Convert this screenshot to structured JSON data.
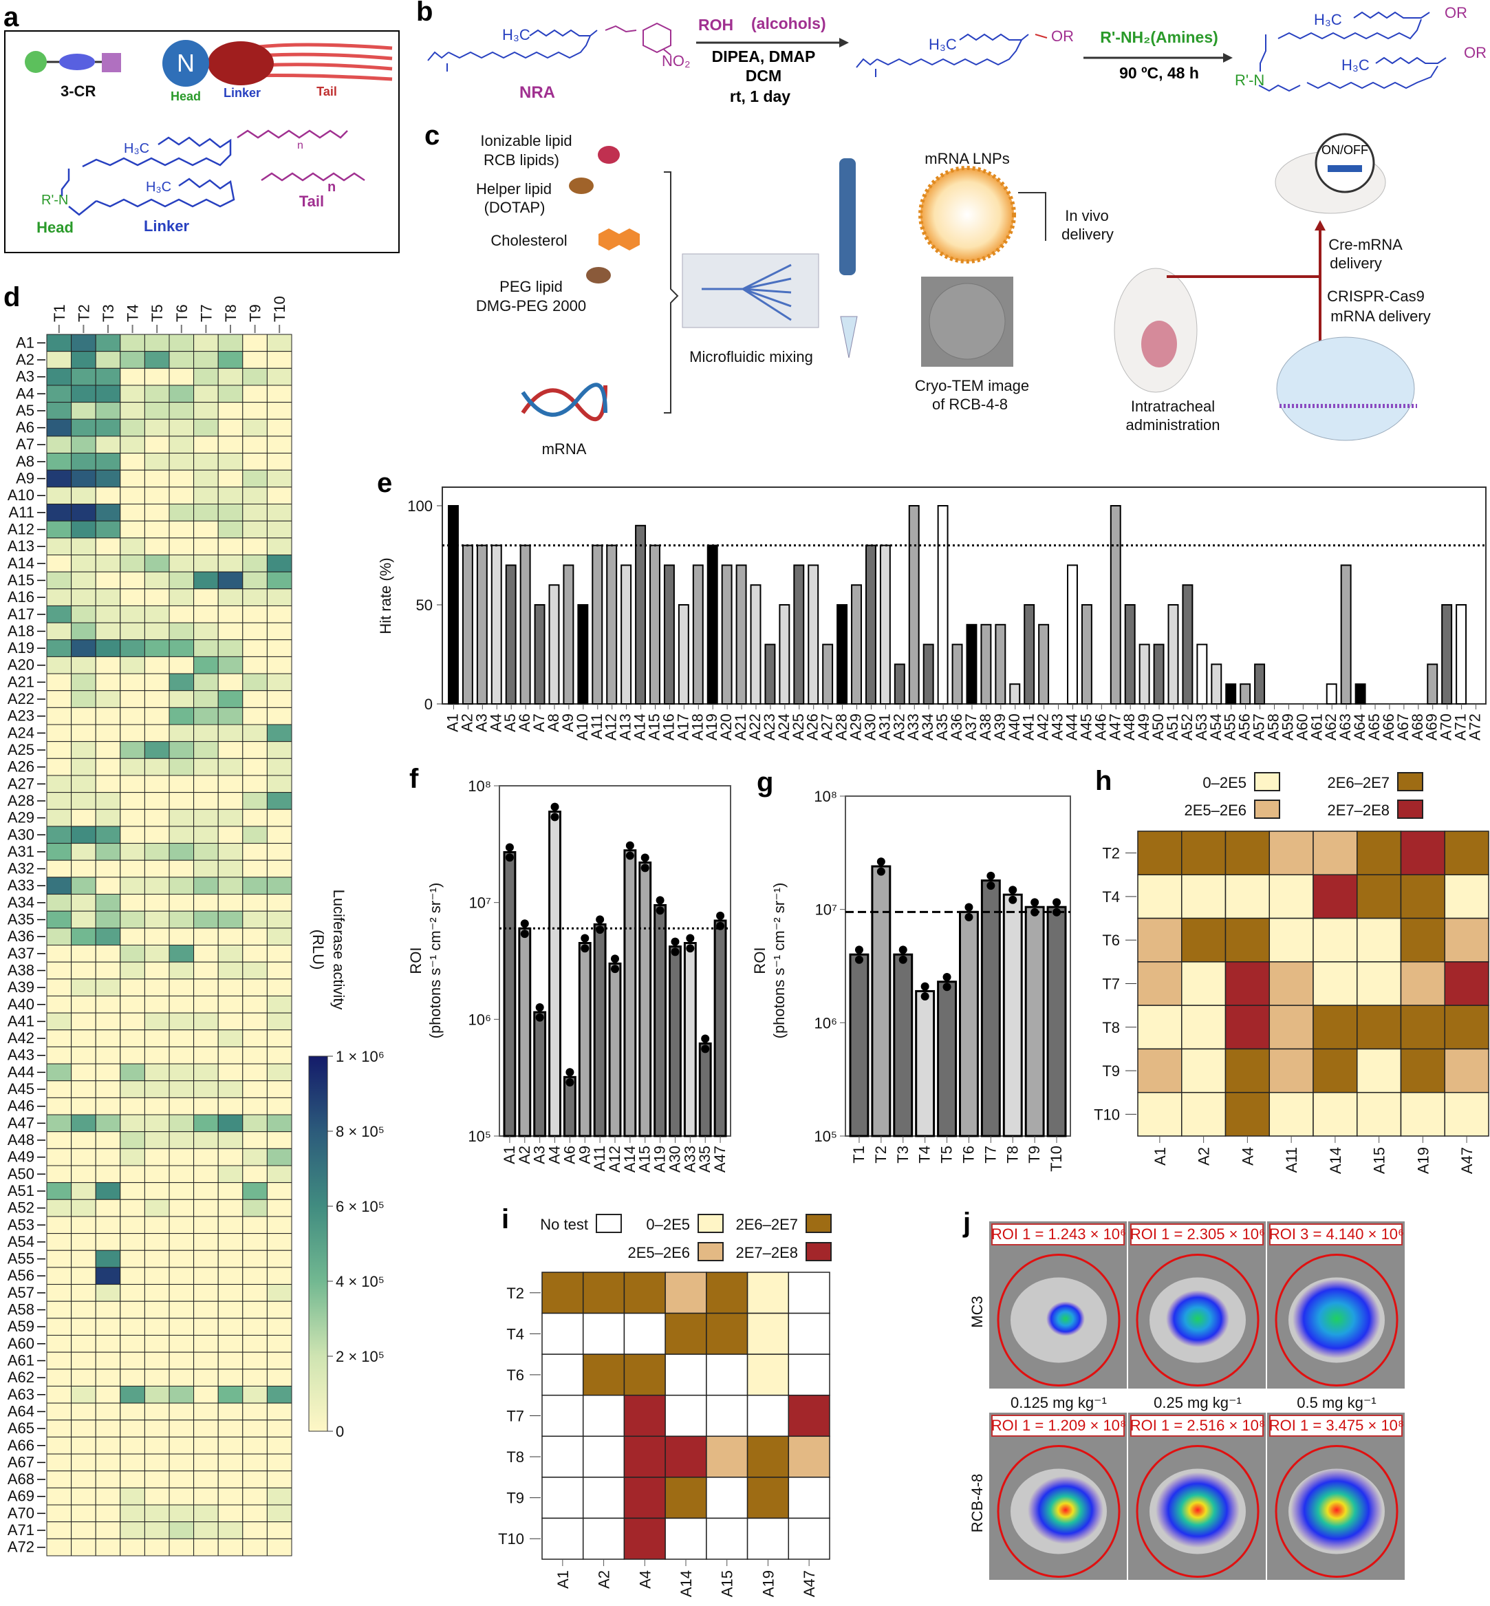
{
  "panel_labels": {
    "a": "a",
    "b": "b",
    "c": "c",
    "d": "d",
    "e": "e",
    "f": "f",
    "g": "g",
    "h": "h",
    "i": "i",
    "j": "j"
  },
  "panel_a": {
    "three_cr": "3-CR",
    "n": "N",
    "head": "Head",
    "linker": "Linker",
    "tail": "Tail",
    "h3c_1": "H₃C",
    "h3c_2": "H₃C",
    "r_n": "R'-N",
    "n_1": "n",
    "n_2": "n",
    "struct_head": "Head",
    "struct_linker": "Linker",
    "struct_tail": "Tail"
  },
  "panel_b": {
    "h3c_1": "H₃C",
    "no2": "NO₂",
    "nra": "NRA",
    "reagent_1": "ROH",
    "reagent_1_note": "(alcohols)",
    "cond_1a": "DIPEA, DMAP",
    "cond_1b": "DCM",
    "cond_1c": "rt, 1 day",
    "h3c_2": "H₃C",
    "or_1": "OR",
    "reagent_2": "R'-NH₂(Amines)",
    "cond_2": "90 ºC, 48 h",
    "h3c_3": "H₃C",
    "or_2": "OR",
    "r_n": "R'-N",
    "h3c_4": "H₃C",
    "or_3": "OR"
  },
  "panel_c": {
    "ionizable_1": "Ionizable lipid",
    "ionizable_2": "RCB lipids)",
    "helper_1": "Helper lipid",
    "helper_2": "(DOTAP)",
    "cholesterol": "Cholesterol",
    "peg_1": "PEG lipid",
    "peg_2": "DMG-PEG 2000",
    "mrna": "mRNA",
    "microfluidic": "Microfluidic mixing",
    "lnps": "mRNA LNPs",
    "cryo_1": "Cryo-TEM image",
    "cryo_2": "of RCB-4-8",
    "invivo_1": "In vivo",
    "invivo_2": "delivery",
    "it_1": "Intratracheal",
    "it_2": "administration",
    "onoff": "ON/OFF",
    "cre_1": "Cre-mRNA",
    "cre_2": "delivery",
    "crispr_1": "CRISPR-Cas9",
    "crispr_2": "mRNA delivery"
  },
  "panel_j": {
    "rows": [
      "MC3",
      "RCB-4-8"
    ],
    "doses": [
      "0.125 mg kg⁻¹",
      "0.25 mg kg⁻¹",
      "0.5 mg kg⁻¹"
    ],
    "roi": [
      [
        "ROI 1 = 1.243 × 10⁶",
        "ROI 1 = 2.305 × 10⁶",
        "ROI 3 = 4.140 × 10⁶"
      ],
      [
        "ROI 1 = 1.209 × 10⁸",
        "ROI 1 = 2.516 × 10⁸",
        "ROI 1 = 3.475 × 10⁸"
      ]
    ]
  },
  "colors": {
    "heat_stops": [
      "#fff7c6",
      "#cfe4b2",
      "#72b891",
      "#418c80",
      "#2c5b7b",
      "#141b6a"
    ],
    "bins": [
      "#fff5c6",
      "#e3b984",
      "#9e6c14",
      "#a3262a"
    ],
    "shades": {
      "k": "#000000",
      "d": "#6e6e6e",
      "g": "#a9a9a9",
      "l": "#d9d9d9",
      "w": "#ffffff"
    }
  },
  "chart_data": [
    {
      "panel": "d",
      "type": "heatmap",
      "unit": "x1e5 RLU (0-10 scale)",
      "columns": [
        "T1",
        "T2",
        "T3",
        "T4",
        "T5",
        "T6",
        "T7",
        "T8",
        "T9",
        "T10"
      ],
      "rows": [
        "A1",
        "A2",
        "A3",
        "A4",
        "A5",
        "A6",
        "A7",
        "A8",
        "A9",
        "A10",
        "A11",
        "A12",
        "A13",
        "A14",
        "A15",
        "A16",
        "A17",
        "A18",
        "A19",
        "A20",
        "A21",
        "A22",
        "A23",
        "A24",
        "A25",
        "A26",
        "A27",
        "A28",
        "A29",
        "A30",
        "A31",
        "A32",
        "A33",
        "A34",
        "A35",
        "A36",
        "A37",
        "A38",
        "A39",
        "A40",
        "A41",
        "A42",
        "A43",
        "A44",
        "A45",
        "A46",
        "A47",
        "A48",
        "A49",
        "A50",
        "A51",
        "A52",
        "A53",
        "A54",
        "A55",
        "A56",
        "A57",
        "A58",
        "A59",
        "A60",
        "A61",
        "A62",
        "A63",
        "A64",
        "A65",
        "A66",
        "A67",
        "A68",
        "A69",
        "A70",
        "A71",
        "A72"
      ],
      "values": [
        "6752221201",
        "1623522400",
        "6550002121",
        "5661231200",
        "5231221000",
        "8552112010",
        "2311010000",
        "4550111100",
        "9870001021",
        "1100001110",
        "9970022211",
        "4650000211",
        "1101000001",
        "0112311126",
        "2100126824",
        "1110010111",
        "5211100000",
        "1311121000",
        "5865442200",
        "1101004300",
        "0200052021",
        "0210012400",
        "0000043300",
        "0000011115",
        "0103532001",
        "0101121101",
        "1100000001",
        "1110000025",
        "1010011100",
        "5650011020",
        "4131232100",
        "0000001100",
        "7301123233",
        "2130000000",
        "4132123311",
        "2450000001",
        "0002150100",
        "0001010110",
        "0110000000",
        "0000000001",
        "1000111001",
        "0000000100",
        "0000000000",
        "3003111001",
        "0001111100",
        "0000000000",
        "3531124623",
        "0002111100",
        "0001000013",
        "0000000101",
        "4160000040",
        "1100100020",
        "0000000000",
        "0000000000",
        "0060000000",
        "0090000000",
        "0010000001",
        "0000000000",
        "0000000000",
        "0000000000",
        "0000000000",
        "0000000000",
        "0105230415",
        "0000000000",
        "0000000000",
        "0000000000",
        "0000000000",
        "0000000000",
        "0001000001",
        "0001111001",
        "0001121100",
        "0000000000"
      ],
      "colorbar": {
        "label_1": "Luciferase activity",
        "label_2": "(RLU)",
        "range": [
          0,
          1000000
        ],
        "ticks": [
          "1 × 10⁶",
          "8 × 10⁵",
          "6 × 10⁵",
          "4 × 10⁵",
          "2 × 10⁵",
          "0"
        ]
      }
    },
    {
      "panel": "e",
      "type": "bar",
      "ylabel": "Hit rate (%)",
      "ylim": [
        0,
        110
      ],
      "yticks": [
        "0",
        "50",
        "100"
      ],
      "threshold": 80,
      "categories": [
        "A1",
        "A2",
        "A3",
        "A4",
        "A5",
        "A6",
        "A7",
        "A8",
        "A9",
        "A10",
        "A11",
        "A12",
        "A13",
        "A14",
        "A15",
        "A16",
        "A17",
        "A18",
        "A19",
        "A20",
        "A21",
        "A22",
        "A23",
        "A24",
        "A25",
        "A26",
        "A27",
        "A28",
        "A29",
        "A30",
        "A31",
        "A32",
        "A33",
        "A34",
        "A35",
        "A36",
        "A37",
        "A38",
        "A39",
        "A40",
        "A41",
        "A42",
        "A43",
        "A44",
        "A45",
        "A46",
        "A47",
        "A48",
        "A49",
        "A50",
        "A51",
        "A52",
        "A53",
        "A54",
        "A55",
        "A56",
        "A57",
        "A58",
        "A59",
        "A60",
        "A61",
        "A62",
        "A63",
        "A64",
        "A65",
        "A66",
        "A67",
        "A68",
        "A69",
        "A70",
        "A71",
        "A72"
      ],
      "values": [
        100,
        80,
        80,
        80,
        70,
        80,
        50,
        60,
        70,
        50,
        80,
        80,
        70,
        90,
        80,
        70,
        50,
        70,
        80,
        70,
        70,
        60,
        30,
        50,
        70,
        70,
        30,
        50,
        60,
        80,
        80,
        20,
        100,
        30,
        100,
        30,
        40,
        40,
        40,
        10,
        50,
        40,
        0,
        70,
        50,
        0,
        100,
        50,
        30,
        30,
        50,
        60,
        30,
        20,
        10,
        10,
        20,
        0,
        0,
        0,
        0,
        10,
        70,
        10,
        0,
        0,
        0,
        0,
        20,
        50,
        50,
        0
      ],
      "shades": "kggldgdlgkggldgdlgkggldldlgkgdldgdwgkggldgwwgwgdldldwlkgdwwwwwgkwwwwgdww"
    },
    {
      "panel": "f",
      "type": "bar",
      "yscale": "log",
      "ylim": [
        100000,
        100000000
      ],
      "yticks": [
        "10⁸",
        "10⁷",
        "10⁶",
        "10⁵"
      ],
      "ylabel_1": "ROI",
      "ylabel_2": "(photons s⁻¹ cm⁻² sr⁻¹)",
      "threshold": 6000000,
      "categories": [
        "A1",
        "A2",
        "A3",
        "A4",
        "A6",
        "A9",
        "A11",
        "A12",
        "A14",
        "A15",
        "A19",
        "A30",
        "A33",
        "A35",
        "A47"
      ],
      "values": [
        27000000,
        6000000,
        1150000,
        60000000,
        320000,
        4500000,
        6500000,
        3000000,
        28000000,
        22000000,
        9500000,
        4200000,
        4500000,
        620000,
        7000000
      ],
      "shades": "dgdldgdgggddldd"
    },
    {
      "panel": "g",
      "type": "bar",
      "yscale": "log",
      "ylim": [
        100000,
        100000000
      ],
      "yticks": [
        "10⁸",
        "10⁷",
        "10⁶",
        "10⁵"
      ],
      "ylabel_1": "ROI",
      "ylabel_2": "(photons s⁻¹ cm⁻² sr⁻¹)",
      "threshold": 9500000,
      "categories": [
        "T1",
        "T2",
        "T3",
        "T4",
        "T5",
        "T6",
        "T7",
        "T8",
        "T9",
        "T10"
      ],
      "values": [
        4000000,
        24000000,
        4000000,
        1900000,
        2300000,
        9500000,
        18000000,
        13500000,
        10500000,
        10500000
      ],
      "shades": "dgdldgdlgd"
    },
    {
      "panel": "h",
      "type": "heatmap",
      "legend": [
        "0–2E5",
        "2E5–2E6",
        "2E6–2E7",
        "2E7–2E8"
      ],
      "columns": [
        "A1",
        "A2",
        "A4",
        "A11",
        "A14",
        "A15",
        "A19",
        "A47"
      ],
      "rows": [
        "T2",
        "T4",
        "T6",
        "T7",
        "T8",
        "T9",
        "T10"
      ],
      "values": [
        "22211232",
        "00003220",
        "12200021",
        "10310013",
        "00312222",
        "10212021",
        "00200000"
      ]
    },
    {
      "panel": "i",
      "type": "heatmap",
      "no_test_label": "No test",
      "legend": [
        "0–2E5",
        "2E5–2E6",
        "2E6–2E7",
        "2E7–2E8"
      ],
      "columns": [
        "A1",
        "A2",
        "A4",
        "A14",
        "A15",
        "A19",
        "A47"
      ],
      "rows": [
        "T2",
        "T4",
        "T6",
        "T7",
        "T8",
        "T9",
        "T10"
      ],
      "values": [
        "222120N",
        "NNN220N",
        "N22NN0N",
        "NN3NNN3",
        "NN33121",
        "NN32N2N",
        "NN3NNNN"
      ]
    }
  ]
}
